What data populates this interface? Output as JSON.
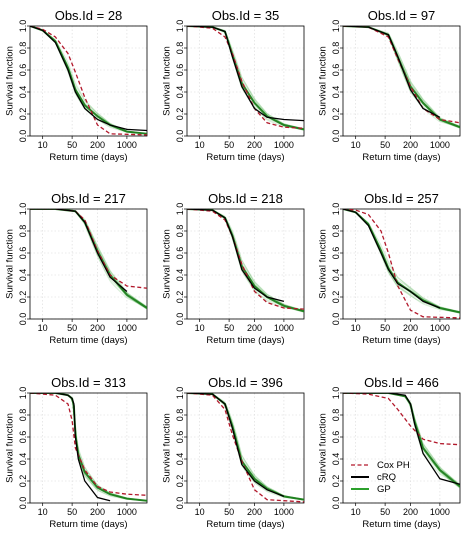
{
  "chart_data": {
    "type": "line",
    "layout": "3x3 small multiples",
    "x_scale": "log",
    "xlabel": "Return time (days)",
    "ylabel": "Survival function",
    "x_ticks": [
      10,
      50,
      200,
      1000
    ],
    "y_ticks": [
      "0.0",
      "0.2",
      "0.4",
      "0.6",
      "0.8",
      "1.0"
    ],
    "xlim": [
      5,
      3000
    ],
    "ylim": [
      0,
      1
    ],
    "grid": true,
    "legend": {
      "placement": "bottom-right of last panel",
      "entries": [
        {
          "label": "Cox PH",
          "style": "dashed",
          "color": "#b2182b"
        },
        {
          "label": "cRQ",
          "style": "solid",
          "color": "#000000"
        },
        {
          "label": "GP",
          "style": "solid",
          "color": "#2ca02c"
        }
      ]
    },
    "panels": [
      {
        "title": "Obs.Id = 28",
        "cox": [
          [
            5,
            1.0
          ],
          [
            10,
            0.97
          ],
          [
            20,
            0.9
          ],
          [
            40,
            0.75
          ],
          [
            60,
            0.58
          ],
          [
            100,
            0.35
          ],
          [
            200,
            0.1
          ],
          [
            400,
            0.02
          ],
          [
            3000,
            0.01
          ]
        ],
        "crq": [
          [
            5,
            1.0
          ],
          [
            10,
            0.96
          ],
          [
            20,
            0.85
          ],
          [
            40,
            0.6
          ],
          [
            60,
            0.4
          ],
          [
            100,
            0.25
          ],
          [
            200,
            0.15
          ],
          [
            400,
            0.1
          ],
          [
            1000,
            0.06
          ],
          [
            3000,
            0.05
          ]
        ],
        "gp": [
          [
            5,
            1.0
          ],
          [
            10,
            0.96
          ],
          [
            20,
            0.86
          ],
          [
            40,
            0.62
          ],
          [
            60,
            0.42
          ],
          [
            100,
            0.28
          ],
          [
            200,
            0.18
          ],
          [
            400,
            0.1
          ],
          [
            1000,
            0.04
          ],
          [
            3000,
            0.02
          ]
        ]
      },
      {
        "title": "Obs.Id = 35",
        "cox": [
          [
            5,
            1.0
          ],
          [
            20,
            0.98
          ],
          [
            40,
            0.9
          ],
          [
            60,
            0.75
          ],
          [
            100,
            0.5
          ],
          [
            200,
            0.25
          ],
          [
            400,
            0.12
          ],
          [
            1000,
            0.08
          ],
          [
            3000,
            0.07
          ]
        ],
        "crq": [
          [
            5,
            1.0
          ],
          [
            20,
            0.99
          ],
          [
            40,
            0.95
          ],
          [
            60,
            0.72
          ],
          [
            100,
            0.45
          ],
          [
            200,
            0.25
          ],
          [
            400,
            0.17
          ],
          [
            1000,
            0.15
          ],
          [
            3000,
            0.14
          ]
        ],
        "gp": [
          [
            5,
            1.0
          ],
          [
            20,
            0.99
          ],
          [
            40,
            0.95
          ],
          [
            60,
            0.74
          ],
          [
            100,
            0.48
          ],
          [
            200,
            0.3
          ],
          [
            400,
            0.18
          ],
          [
            1000,
            0.1
          ],
          [
            3000,
            0.06
          ]
        ]
      },
      {
        "title": "Obs.Id = 97",
        "cox": [
          [
            5,
            1.0
          ],
          [
            20,
            0.99
          ],
          [
            60,
            0.9
          ],
          [
            100,
            0.7
          ],
          [
            200,
            0.45
          ],
          [
            400,
            0.25
          ],
          [
            1000,
            0.15
          ],
          [
            3000,
            0.12
          ]
        ],
        "crq": [
          [
            5,
            1.0
          ],
          [
            20,
            0.99
          ],
          [
            60,
            0.92
          ],
          [
            100,
            0.72
          ],
          [
            200,
            0.42
          ],
          [
            400,
            0.25
          ],
          [
            1000,
            0.17
          ]
        ],
        "gp": [
          [
            5,
            1.0
          ],
          [
            20,
            0.99
          ],
          [
            60,
            0.92
          ],
          [
            100,
            0.72
          ],
          [
            200,
            0.45
          ],
          [
            400,
            0.3
          ],
          [
            1000,
            0.15
          ],
          [
            3000,
            0.08
          ]
        ]
      },
      {
        "title": "Obs.Id = 217",
        "cox": [
          [
            5,
            1.0
          ],
          [
            20,
            1.0
          ],
          [
            60,
            0.98
          ],
          [
            100,
            0.9
          ],
          [
            200,
            0.62
          ],
          [
            400,
            0.4
          ],
          [
            1000,
            0.3
          ],
          [
            3000,
            0.28
          ]
        ],
        "crq": [
          [
            5,
            1.0
          ],
          [
            20,
            1.0
          ],
          [
            60,
            0.98
          ],
          [
            100,
            0.88
          ],
          [
            200,
            0.6
          ],
          [
            400,
            0.38
          ],
          [
            1000,
            0.25
          ]
        ],
        "gp": [
          [
            5,
            1.0
          ],
          [
            20,
            1.0
          ],
          [
            60,
            0.98
          ],
          [
            100,
            0.88
          ],
          [
            200,
            0.62
          ],
          [
            400,
            0.4
          ],
          [
            1000,
            0.22
          ],
          [
            3000,
            0.1
          ]
        ]
      },
      {
        "title": "Obs.Id = 218",
        "cox": [
          [
            5,
            1.0
          ],
          [
            20,
            0.98
          ],
          [
            40,
            0.9
          ],
          [
            60,
            0.75
          ],
          [
            100,
            0.5
          ],
          [
            200,
            0.25
          ],
          [
            400,
            0.15
          ],
          [
            1000,
            0.1
          ],
          [
            3000,
            0.09
          ]
        ],
        "crq": [
          [
            5,
            1.0
          ],
          [
            20,
            0.99
          ],
          [
            40,
            0.92
          ],
          [
            60,
            0.75
          ],
          [
            100,
            0.45
          ],
          [
            200,
            0.28
          ],
          [
            400,
            0.2
          ],
          [
            1000,
            0.16
          ]
        ],
        "gp": [
          [
            5,
            1.0
          ],
          [
            20,
            0.99
          ],
          [
            40,
            0.92
          ],
          [
            60,
            0.76
          ],
          [
            100,
            0.48
          ],
          [
            200,
            0.3
          ],
          [
            400,
            0.2
          ],
          [
            1000,
            0.12
          ],
          [
            3000,
            0.07
          ]
        ]
      },
      {
        "title": "Obs.Id = 257",
        "cox": [
          [
            5,
            1.0
          ],
          [
            10,
            0.99
          ],
          [
            20,
            0.95
          ],
          [
            40,
            0.8
          ],
          [
            60,
            0.6
          ],
          [
            100,
            0.3
          ],
          [
            200,
            0.08
          ],
          [
            400,
            0.02
          ],
          [
            3000,
            0.01
          ]
        ],
        "crq": [
          [
            5,
            1.0
          ],
          [
            10,
            0.97
          ],
          [
            20,
            0.85
          ],
          [
            40,
            0.6
          ],
          [
            60,
            0.45
          ],
          [
            100,
            0.32
          ],
          [
            200,
            0.25
          ],
          [
            400,
            0.16
          ],
          [
            1000,
            0.1
          ]
        ],
        "gp": [
          [
            5,
            1.0
          ],
          [
            10,
            0.97
          ],
          [
            20,
            0.86
          ],
          [
            40,
            0.62
          ],
          [
            60,
            0.46
          ],
          [
            100,
            0.33
          ],
          [
            200,
            0.25
          ],
          [
            400,
            0.17
          ],
          [
            1000,
            0.1
          ],
          [
            3000,
            0.06
          ]
        ]
      },
      {
        "title": "Obs.Id = 313",
        "cox": [
          [
            5,
            1.0
          ],
          [
            20,
            0.98
          ],
          [
            40,
            0.9
          ],
          [
            50,
            0.75
          ],
          [
            60,
            0.5
          ],
          [
            100,
            0.3
          ],
          [
            200,
            0.15
          ],
          [
            400,
            0.1
          ],
          [
            1000,
            0.08
          ],
          [
            3000,
            0.07
          ]
        ],
        "crq": [
          [
            5,
            1.0
          ],
          [
            20,
            1.0
          ],
          [
            40,
            0.98
          ],
          [
            50,
            0.95
          ],
          [
            55,
            0.9
          ],
          [
            60,
            0.6
          ],
          [
            70,
            0.4
          ],
          [
            100,
            0.2
          ],
          [
            200,
            0.05
          ],
          [
            400,
            0.02
          ]
        ],
        "gp": [
          [
            5,
            1.0
          ],
          [
            20,
            1.0
          ],
          [
            40,
            0.98
          ],
          [
            50,
            0.95
          ],
          [
            55,
            0.88
          ],
          [
            60,
            0.62
          ],
          [
            70,
            0.44
          ],
          [
            100,
            0.28
          ],
          [
            200,
            0.14
          ],
          [
            400,
            0.08
          ],
          [
            1000,
            0.04
          ],
          [
            3000,
            0.02
          ]
        ]
      },
      {
        "title": "Obs.Id = 396",
        "cox": [
          [
            5,
            1.0
          ],
          [
            20,
            0.98
          ],
          [
            40,
            0.85
          ],
          [
            60,
            0.62
          ],
          [
            100,
            0.38
          ],
          [
            200,
            0.12
          ],
          [
            400,
            0.03
          ],
          [
            3000,
            0.01
          ]
        ],
        "crq": [
          [
            5,
            1.0
          ],
          [
            20,
            0.99
          ],
          [
            40,
            0.9
          ],
          [
            60,
            0.68
          ],
          [
            100,
            0.35
          ],
          [
            200,
            0.2
          ],
          [
            400,
            0.12
          ],
          [
            1000,
            0.06
          ]
        ],
        "gp": [
          [
            5,
            1.0
          ],
          [
            20,
            0.99
          ],
          [
            40,
            0.9
          ],
          [
            60,
            0.7
          ],
          [
            100,
            0.38
          ],
          [
            200,
            0.22
          ],
          [
            400,
            0.13
          ],
          [
            1000,
            0.06
          ],
          [
            3000,
            0.03
          ]
        ]
      },
      {
        "title": "Obs.Id = 466",
        "cox": [
          [
            5,
            1.0
          ],
          [
            20,
            0.99
          ],
          [
            60,
            0.95
          ],
          [
            100,
            0.85
          ],
          [
            200,
            0.7
          ],
          [
            400,
            0.58
          ],
          [
            1000,
            0.54
          ],
          [
            3000,
            0.53
          ]
        ],
        "crq": [
          [
            5,
            1.0
          ],
          [
            60,
            1.0
          ],
          [
            150,
            0.98
          ],
          [
            200,
            0.9
          ],
          [
            250,
            0.72
          ],
          [
            400,
            0.45
          ],
          [
            1000,
            0.22
          ],
          [
            3000,
            0.17
          ]
        ],
        "gp": [
          [
            5,
            1.0
          ],
          [
            60,
            1.0
          ],
          [
            150,
            0.97
          ],
          [
            200,
            0.9
          ],
          [
            250,
            0.74
          ],
          [
            400,
            0.5
          ],
          [
            1000,
            0.3
          ],
          [
            3000,
            0.15
          ]
        ]
      }
    ]
  }
}
